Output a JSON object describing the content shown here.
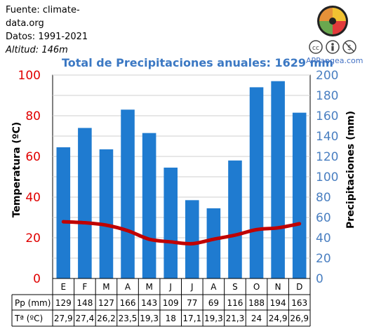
{
  "source": {
    "line1": "Fuente: climate-",
    "line2": "data.org",
    "line3": "Datos: 1991-2021",
    "line4": "Altitud: 146m"
  },
  "brand": "APPangea.com",
  "colors": {
    "bars": "#1f7bd0",
    "temp_line": "#c00000",
    "left_axis": "#e00000",
    "right_axis": "#4a7fc1",
    "title": "#3b78c3"
  },
  "icons": [
    "puzzle-logo-icon",
    "cc-icon",
    "by-icon",
    "nc-icon"
  ],
  "chart_data": {
    "type": "bar",
    "title": "Total de Precipitaciones anuales: 1629 mm",
    "categories": [
      "E",
      "F",
      "M",
      "A",
      "M",
      "J",
      "J",
      "A",
      "S",
      "O",
      "N",
      "D"
    ],
    "series": [
      {
        "name": "Pp (mm)",
        "type": "bar",
        "axis": "right",
        "values": [
          129,
          148,
          127,
          166,
          143,
          109,
          77,
          69,
          116,
          188,
          194,
          163
        ]
      },
      {
        "name": "Tª (ºC)",
        "type": "line",
        "axis": "left",
        "values_text": [
          "27,9",
          "27,4",
          "26,2",
          "23,5",
          "19,3",
          "18",
          "17,1",
          "19,3",
          "21,3",
          "24",
          "24,9",
          "26,9"
        ],
        "values": [
          27.9,
          27.4,
          26.2,
          23.5,
          19.3,
          18,
          17.1,
          19.3,
          21.3,
          24,
          24.9,
          26.9
        ]
      }
    ],
    "ylabel_left": "Temperatura (ºC)",
    "ylabel_right": "Precipitaciones (mm)",
    "ylim_left": [
      0,
      100
    ],
    "ylim_right": [
      0,
      200
    ],
    "yticks_left": [
      "0",
      "20",
      "40",
      "60",
      "80",
      "100"
    ],
    "yticks_right": [
      "0",
      "20",
      "40",
      "60",
      "80",
      "100",
      "120",
      "140",
      "160",
      "180",
      "200"
    ],
    "grid": true,
    "table_row_labels": [
      "Pp (mm)",
      "Tª (ºC)"
    ]
  }
}
